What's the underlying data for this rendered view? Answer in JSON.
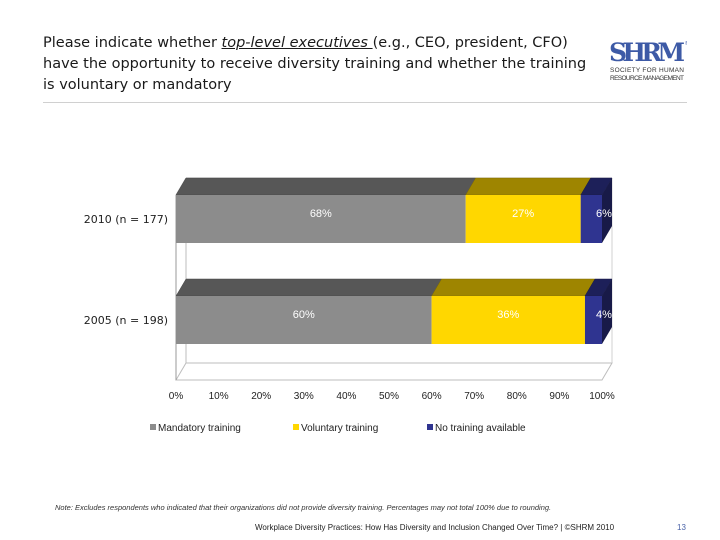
{
  "title": {
    "before": "Please indicate whether ",
    "underlined": "top-level executives ",
    "after": "(e.g., CEO, president, CFO) have the opportunity to receive diversity training and whether the training is voluntary or mandatory"
  },
  "logo": {
    "mark": "SHRM",
    "line1": "SOCIETY FOR HUMAN",
    "line2": "RESOURCE MANAGEMENT",
    "reg": "®"
  },
  "chart_data": {
    "type": "bar",
    "orientation": "horizontal",
    "stacked": true,
    "categories": [
      "2010 (n = 177)",
      "2005 (n = 198)"
    ],
    "series": [
      {
        "name": "Mandatory training",
        "values": [
          68,
          60
        ],
        "labels": [
          "68%",
          "60%"
        ],
        "color": "#8c8c8c"
      },
      {
        "name": "Voluntary training",
        "values": [
          27,
          36
        ],
        "labels": [
          "27%",
          "36%"
        ],
        "color": "#ffd700"
      },
      {
        "name": "No training available",
        "values": [
          6,
          4
        ],
        "labels": [
          "6%",
          "4%"
        ],
        "color": "#2f3490"
      }
    ],
    "xlim": [
      0,
      100
    ],
    "xticks": [
      "0%",
      "10%",
      "20%",
      "30%",
      "40%",
      "50%",
      "60%",
      "70%",
      "80%",
      "90%",
      "100%"
    ],
    "legend_position": "bottom",
    "grid": false
  },
  "note": "Note: Excludes respondents who indicated that their organizations did not provide diversity training. Percentages may not total 100% due to rounding.",
  "footer": "Workplace Diversity Practices: How Has Diversity and Inclusion Changed Over Time? | ©SHRM 2010",
  "page_number": "13"
}
